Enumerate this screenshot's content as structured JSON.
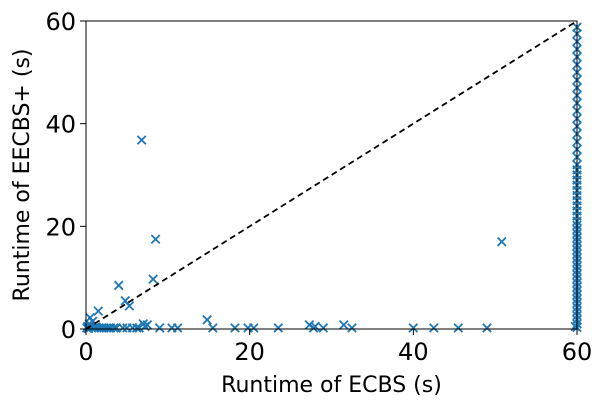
{
  "chart_data": {
    "type": "scatter",
    "xlabel": "Runtime of ECBS (s)",
    "ylabel": "Runtime of EECBS+ (s)",
    "xlim": [
      0,
      60
    ],
    "ylim": [
      0,
      60
    ],
    "x_ticks": [
      0,
      20,
      40,
      60
    ],
    "y_ticks": [
      0,
      20,
      40,
      60
    ],
    "x_tick_labels": [
      "0",
      "20",
      "40",
      "60"
    ],
    "y_tick_labels": [
      "0",
      "20",
      "40",
      "60"
    ],
    "grid": false,
    "marker": "x",
    "marker_color": "#1f77b4",
    "reference_line": {
      "from": [
        0,
        0
      ],
      "to": [
        60,
        60
      ],
      "style": "dashed",
      "color": "#000000"
    },
    "series": [
      {
        "points": [
          [
            0.1,
            0.2
          ],
          [
            0.2,
            0.5
          ],
          [
            0.3,
            0.1
          ],
          [
            0.4,
            1.0
          ],
          [
            0.5,
            2.2
          ],
          [
            0.6,
            0.3
          ],
          [
            0.8,
            1.5
          ],
          [
            1.0,
            0.2
          ],
          [
            1.2,
            0.4
          ],
          [
            1.5,
            3.5
          ],
          [
            1.6,
            0.2
          ],
          [
            1.9,
            0.2
          ],
          [
            2.2,
            0.2
          ],
          [
            2.5,
            0.2
          ],
          [
            2.8,
            0.2
          ],
          [
            3.0,
            0.2
          ],
          [
            3.4,
            0.2
          ],
          [
            3.7,
            0.2
          ],
          [
            4.0,
            8.5
          ],
          [
            4.5,
            0.2
          ],
          [
            4.8,
            5.5
          ],
          [
            5.0,
            0.2
          ],
          [
            5.3,
            4.5
          ],
          [
            5.7,
            0.2
          ],
          [
            6.2,
            0.2
          ],
          [
            6.5,
            0.2
          ],
          [
            6.8,
            36.8
          ],
          [
            7.0,
            1.0
          ],
          [
            7.2,
            0.5
          ],
          [
            7.5,
            0.8
          ],
          [
            8.2,
            9.7
          ],
          [
            8.5,
            17.5
          ],
          [
            9.0,
            0.2
          ],
          [
            10.5,
            0.2
          ],
          [
            11.2,
            0.2
          ],
          [
            14.8,
            1.8
          ],
          [
            15.5,
            0.2
          ],
          [
            18.2,
            0.2
          ],
          [
            19.8,
            0.2
          ],
          [
            20.5,
            0.2
          ],
          [
            23.5,
            0.2
          ],
          [
            27.3,
            0.8
          ],
          [
            27.8,
            0.2
          ],
          [
            28.0,
            0.5
          ],
          [
            29.0,
            0.2
          ],
          [
            31.5,
            0.8
          ],
          [
            32.5,
            0.2
          ],
          [
            40.0,
            0.2
          ],
          [
            42.5,
            0.2
          ],
          [
            45.5,
            0.2
          ],
          [
            49.0,
            0.2
          ],
          [
            50.8,
            17.0
          ],
          [
            59.8,
            0.5
          ],
          [
            60,
            0.3
          ],
          [
            60,
            1.0
          ],
          [
            60,
            1.8
          ],
          [
            60,
            2.6
          ],
          [
            60,
            3.4
          ],
          [
            60,
            4.2
          ],
          [
            60,
            5.0
          ],
          [
            60,
            5.8
          ],
          [
            60,
            6.6
          ],
          [
            60,
            7.4
          ],
          [
            60,
            8.2
          ],
          [
            60,
            9.0
          ],
          [
            60,
            9.8
          ],
          [
            60,
            10.6
          ],
          [
            60,
            11.4
          ],
          [
            60,
            12.2
          ],
          [
            60,
            13.0
          ],
          [
            60,
            13.8
          ],
          [
            60,
            14.6
          ],
          [
            60,
            15.4
          ],
          [
            60,
            16.2
          ],
          [
            60,
            17.0
          ],
          [
            60,
            17.8
          ],
          [
            60,
            18.6
          ],
          [
            60,
            19.4
          ],
          [
            60,
            20.2
          ],
          [
            60,
            21.0
          ],
          [
            60,
            22.0
          ],
          [
            60,
            23.0
          ],
          [
            60,
            24.0
          ],
          [
            60,
            25.0
          ],
          [
            60,
            26.0
          ],
          [
            60,
            27.0
          ],
          [
            60,
            28.0
          ],
          [
            60,
            29.0
          ],
          [
            60,
            30.0
          ],
          [
            60,
            31.0
          ],
          [
            60,
            32.0
          ],
          [
            60,
            33.5
          ],
          [
            60,
            35.0
          ],
          [
            60,
            36.5
          ],
          [
            60,
            38.0
          ],
          [
            60,
            39.5
          ],
          [
            60,
            41.0
          ],
          [
            60,
            42.5
          ],
          [
            60,
            44.0
          ],
          [
            60,
            45.5
          ],
          [
            60,
            47.0
          ],
          [
            60,
            48.5
          ],
          [
            60,
            50.0
          ],
          [
            60,
            51.5
          ],
          [
            60,
            53.0
          ],
          [
            60,
            54.5
          ],
          [
            60,
            56.0
          ],
          [
            60,
            57.5
          ],
          [
            60,
            58.8
          ]
        ]
      }
    ]
  }
}
